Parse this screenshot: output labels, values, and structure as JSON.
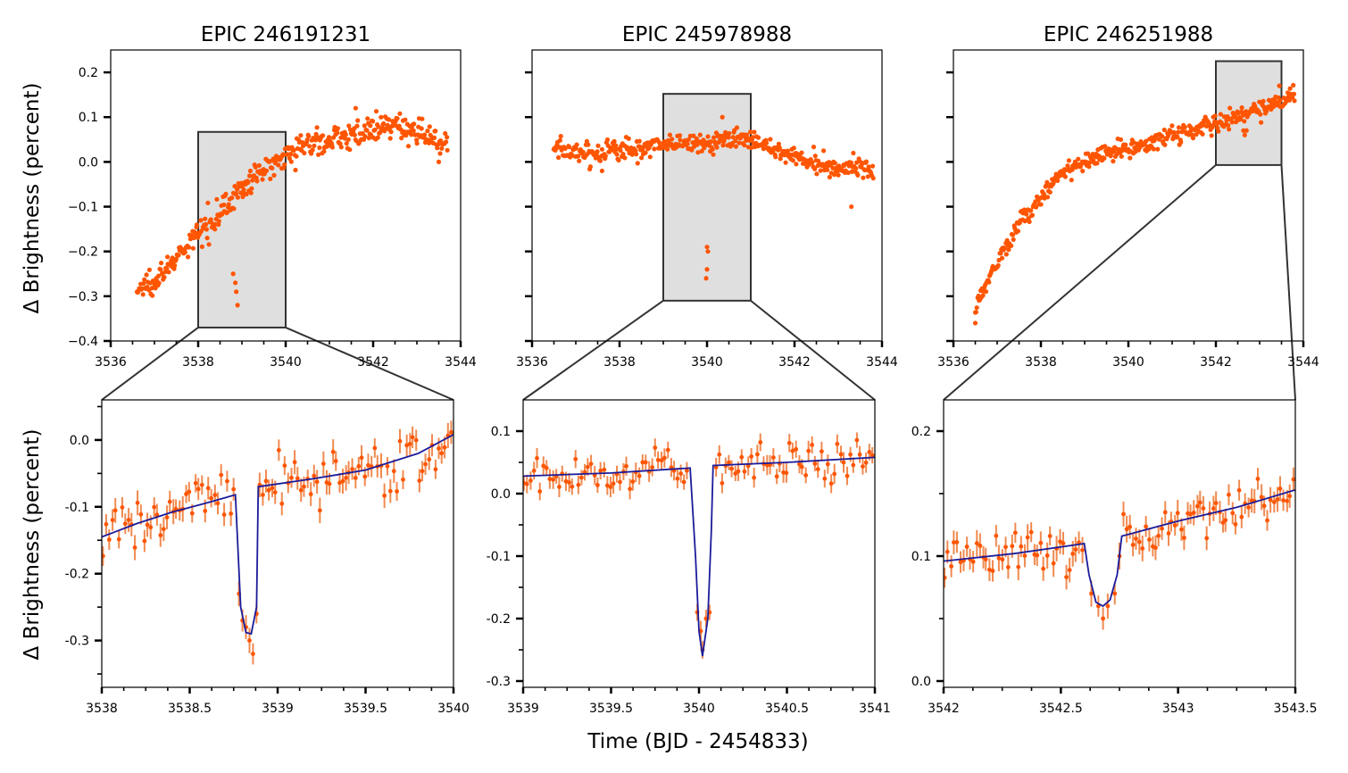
{
  "figure": {
    "ylabel": "Δ Brightness (percent)",
    "xlabel": "Time (BJD - 2454833)"
  },
  "colors": {
    "points": "#FF5500",
    "errorbars": "#F08A50",
    "model": "#1B1B9A",
    "highlight_fill": "#DFDFDF",
    "highlight_edge": "#333333"
  },
  "chart_data": [
    {
      "id": "top-1",
      "type": "scatter",
      "title": "EPIC 246191231",
      "xlim": [
        3536,
        3544
      ],
      "ylim": [
        -0.4,
        0.25
      ],
      "xticks": [
        3536,
        3538,
        3540,
        3542,
        3544
      ],
      "xtick_labels": [
        "3536",
        "3538",
        "3540",
        "3542",
        "3544"
      ],
      "yticks": [
        -0.4,
        -0.3,
        -0.2,
        -0.1,
        0.0,
        0.1,
        0.2
      ],
      "ytick_labels": [
        "−0.4",
        "−0.3",
        "−0.2",
        "−0.1",
        "0.0",
        "0.1",
        "0.2"
      ],
      "trend": [
        [
          3536.6,
          -0.29
        ],
        [
          3537.0,
          -0.26
        ],
        [
          3537.5,
          -0.22
        ],
        [
          3538.0,
          -0.16
        ],
        [
          3538.5,
          -0.11
        ],
        [
          3539.0,
          -0.06
        ],
        [
          3539.5,
          -0.02
        ],
        [
          3540.0,
          0.02
        ],
        [
          3540.5,
          0.04
        ],
        [
          3541.0,
          0.05
        ],
        [
          3541.5,
          0.06
        ],
        [
          3542.0,
          0.07
        ],
        [
          3542.5,
          0.08
        ],
        [
          3543.0,
          0.07
        ],
        [
          3543.4,
          0.05
        ],
        [
          3543.7,
          0.04
        ]
      ],
      "scatter": 0.014,
      "extra_points": [
        [
          3538.8,
          -0.25
        ],
        [
          3538.85,
          -0.27
        ],
        [
          3538.87,
          -0.29
        ],
        [
          3538.9,
          -0.32
        ],
        [
          3543.5,
          0.0
        ],
        [
          3541.6,
          0.12
        ]
      ],
      "highlight": {
        "x": [
          3538,
          3540
        ],
        "y": [
          -0.37,
          0.067
        ]
      }
    },
    {
      "id": "top-2",
      "type": "scatter",
      "title": "EPIC 245978988",
      "xlim": [
        3536,
        3544
      ],
      "ylim": [
        -0.4,
        0.25
      ],
      "xticks": [
        3536,
        3538,
        3540,
        3542,
        3544
      ],
      "xtick_labels": [
        "3536",
        "3538",
        "3540",
        "3542",
        "3544"
      ],
      "yticks": [
        -0.4,
        -0.3,
        -0.2,
        -0.1,
        0.0,
        0.1,
        0.2
      ],
      "ytick_labels": [],
      "trend": [
        [
          3536.5,
          0.03
        ],
        [
          3537.0,
          0.02
        ],
        [
          3537.5,
          0.02
        ],
        [
          3538.0,
          0.03
        ],
        [
          3538.5,
          0.03
        ],
        [
          3539.0,
          0.04
        ],
        [
          3539.5,
          0.04
        ],
        [
          3540.0,
          0.04
        ],
        [
          3540.5,
          0.05
        ],
        [
          3541.0,
          0.05
        ],
        [
          3541.5,
          0.03
        ],
        [
          3542.0,
          0.01
        ],
        [
          3542.5,
          0.0
        ],
        [
          3543.0,
          -0.01
        ],
        [
          3543.5,
          -0.01
        ],
        [
          3543.8,
          -0.02
        ]
      ],
      "scatter": 0.012,
      "extra_points": [
        [
          3540.0,
          -0.19
        ],
        [
          3540.02,
          -0.2
        ],
        [
          3540.0,
          -0.24
        ],
        [
          3539.98,
          -0.26
        ],
        [
          3540.35,
          0.1
        ],
        [
          3543.3,
          -0.1
        ],
        [
          3537.6,
          -0.02
        ]
      ],
      "highlight": {
        "x": [
          3539,
          3541
        ],
        "y": [
          -0.31,
          0.152
        ]
      }
    },
    {
      "id": "top-3",
      "type": "scatter",
      "title": "EPIC 246251988",
      "xlim": [
        3536,
        3544
      ],
      "ylim": [
        -0.4,
        0.25
      ],
      "xticks": [
        3536,
        3538,
        3540,
        3542,
        3544
      ],
      "xtick_labels": [
        "3536",
        "3538",
        "3540",
        "3542",
        "3544"
      ],
      "yticks": [
        -0.4,
        -0.3,
        -0.2,
        -0.1,
        0.0,
        0.1,
        0.2
      ],
      "ytick_labels": [],
      "trend": [
        [
          3536.5,
          -0.33
        ],
        [
          3536.8,
          -0.26
        ],
        [
          3537.0,
          -0.22
        ],
        [
          3537.5,
          -0.14
        ],
        [
          3538.0,
          -0.08
        ],
        [
          3538.5,
          -0.02
        ],
        [
          3539.0,
          0.0
        ],
        [
          3539.5,
          0.02
        ],
        [
          3540.0,
          0.03
        ],
        [
          3540.5,
          0.04
        ],
        [
          3541.0,
          0.06
        ],
        [
          3541.5,
          0.07
        ],
        [
          3542.0,
          0.09
        ],
        [
          3542.5,
          0.1
        ],
        [
          3543.0,
          0.12
        ],
        [
          3543.5,
          0.14
        ],
        [
          3543.8,
          0.15
        ]
      ],
      "scatter": 0.01,
      "extra_points": [
        [
          3536.5,
          -0.36
        ],
        [
          3542.63,
          0.07
        ],
        [
          3542.66,
          0.06
        ],
        [
          3542.7,
          0.07
        ],
        [
          3543.45,
          0.17
        ]
      ],
      "highlight": {
        "x": [
          3542,
          3543.5
        ],
        "y": [
          -0.007,
          0.225
        ]
      }
    },
    {
      "id": "bottom-1",
      "type": "line",
      "xlim": [
        3538,
        3540
      ],
      "ylim": [
        -0.37,
        0.06
      ],
      "xticks": [
        3538,
        3538.5,
        3539,
        3539.5,
        3540
      ],
      "xtick_labels": [
        "3538",
        "3538.5",
        "3539",
        "3539.5",
        "3540"
      ],
      "yticks": [
        -0.3,
        -0.2,
        -0.1,
        0.0
      ],
      "ytick_labels": [
        "-0.3",
        "-0.2",
        "-0.1",
        "0.0"
      ],
      "minor_yticks": [
        -0.35,
        -0.25,
        -0.15,
        -0.05,
        0.05
      ],
      "model": [
        [
          3538.0,
          -0.145
        ],
        [
          3538.2,
          -0.125
        ],
        [
          3538.4,
          -0.108
        ],
        [
          3538.6,
          -0.094
        ],
        [
          3538.76,
          -0.082
        ],
        [
          3538.79,
          -0.25
        ],
        [
          3538.82,
          -0.288
        ],
        [
          3538.85,
          -0.29
        ],
        [
          3538.88,
          -0.25
        ],
        [
          3538.89,
          -0.07
        ],
        [
          3539.2,
          -0.058
        ],
        [
          3539.5,
          -0.045
        ],
        [
          3539.8,
          -0.02
        ],
        [
          3540.0,
          0.008
        ]
      ],
      "transit": {
        "t1": 3538.76,
        "t2": 3538.89,
        "flux": [
          [
            3538.78,
            -0.23
          ],
          [
            3538.8,
            -0.27
          ],
          [
            3538.82,
            -0.28
          ],
          [
            3538.84,
            -0.3
          ],
          [
            3538.86,
            -0.32
          ],
          [
            3538.88,
            -0.26
          ]
        ]
      },
      "n_points": 110,
      "scatter": 0.018,
      "errbar": 0.016
    },
    {
      "id": "bottom-2",
      "type": "line",
      "xlim": [
        3539,
        3541
      ],
      "ylim": [
        -0.31,
        0.15
      ],
      "xticks": [
        3539,
        3539.5,
        3540,
        3540.5,
        3541
      ],
      "xtick_labels": [
        "3539",
        "3539.5",
        "3540",
        "3540.5",
        "3541"
      ],
      "yticks": [
        -0.3,
        -0.2,
        -0.1,
        0.0,
        0.1
      ],
      "ytick_labels": [
        "-0.3",
        "-0.2",
        "-0.1",
        "0.0",
        "0.1"
      ],
      "minor_yticks": [
        -0.25,
        -0.15,
        -0.05,
        0.05
      ],
      "model": [
        [
          3539.0,
          0.028
        ],
        [
          3539.5,
          0.033
        ],
        [
          3539.95,
          0.041
        ],
        [
          3539.98,
          -0.1
        ],
        [
          3540.0,
          -0.22
        ],
        [
          3540.02,
          -0.26
        ],
        [
          3540.05,
          -0.2
        ],
        [
          3540.07,
          -0.06
        ],
        [
          3540.08,
          0.045
        ],
        [
          3540.5,
          0.05
        ],
        [
          3541.0,
          0.058
        ]
      ],
      "transit": {
        "t1": 3539.95,
        "t2": 3540.08,
        "flux": [
          [
            3539.99,
            -0.19
          ],
          [
            3540.01,
            -0.22
          ],
          [
            3540.02,
            -0.25
          ],
          [
            3540.04,
            -0.2
          ],
          [
            3540.06,
            -0.19
          ]
        ]
      },
      "n_points": 110,
      "scatter": 0.015,
      "errbar": 0.014
    },
    {
      "id": "bottom-3",
      "type": "line",
      "xlim": [
        3542,
        3543.5
      ],
      "ylim": [
        -0.005,
        0.225
      ],
      "xticks": [
        3542,
        3542.5,
        3543,
        3543.5
      ],
      "xtick_labels": [
        "3542",
        "3542.5",
        "3543",
        "3543.5"
      ],
      "yticks": [
        0.0,
        0.1,
        0.2
      ],
      "ytick_labels": [
        "0.0",
        "0.1",
        "0.2"
      ],
      "minor_yticks": [
        0.05,
        0.15
      ],
      "model": [
        [
          3542.0,
          0.096
        ],
        [
          3542.3,
          0.102
        ],
        [
          3542.6,
          0.11
        ],
        [
          3542.62,
          0.085
        ],
        [
          3542.65,
          0.063
        ],
        [
          3542.68,
          0.06
        ],
        [
          3542.71,
          0.065
        ],
        [
          3542.74,
          0.085
        ],
        [
          3542.76,
          0.116
        ],
        [
          3543.0,
          0.128
        ],
        [
          3543.25,
          0.139
        ],
        [
          3543.5,
          0.153
        ]
      ],
      "transit": {
        "t1": 3542.6,
        "t2": 3542.76,
        "flux": [
          [
            3542.63,
            0.07
          ],
          [
            3542.66,
            0.06
          ],
          [
            3542.68,
            0.05
          ],
          [
            3542.7,
            0.06
          ],
          [
            3542.73,
            0.07
          ],
          [
            3542.75,
            0.1
          ]
        ]
      },
      "n_points": 110,
      "scatter": 0.009,
      "errbar": 0.009
    }
  ]
}
